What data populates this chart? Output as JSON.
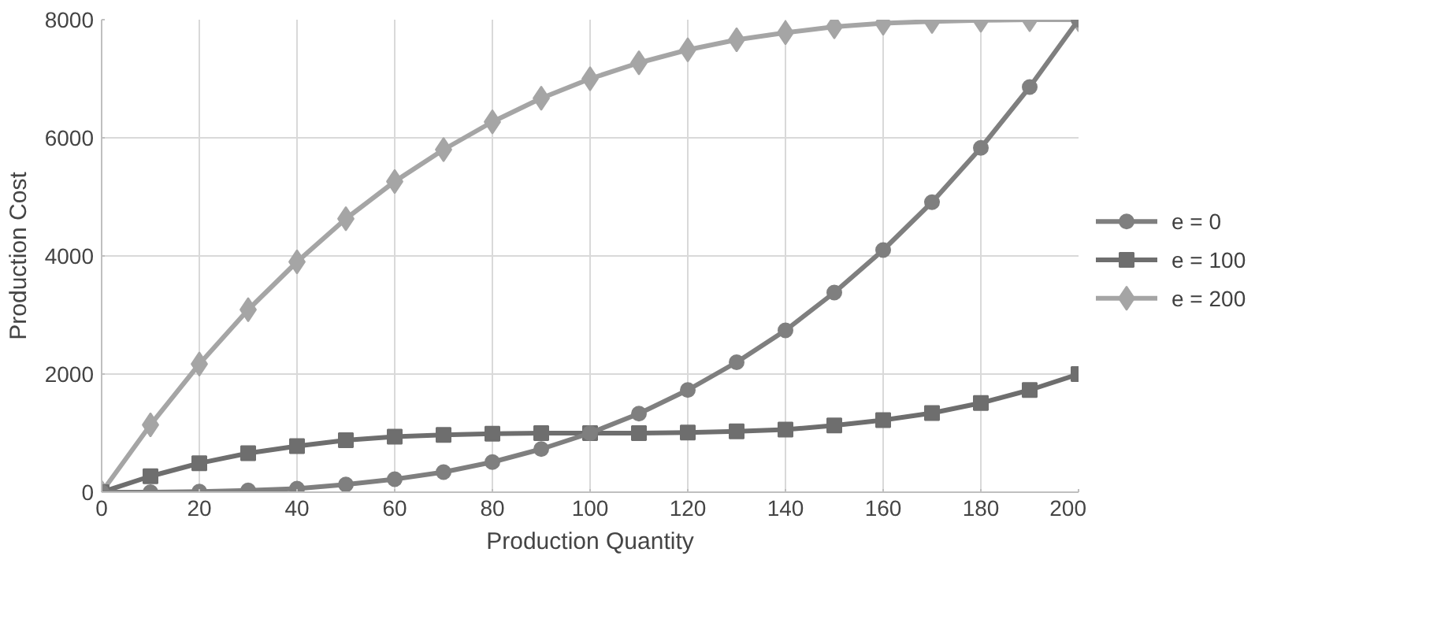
{
  "chart_data": {
    "type": "line",
    "xlabel": "Production Quantity",
    "ylabel": "Production Cost",
    "x": [
      0,
      10,
      20,
      30,
      40,
      50,
      60,
      70,
      80,
      90,
      100,
      110,
      120,
      130,
      140,
      150,
      160,
      170,
      180,
      190,
      200
    ],
    "series": [
      {
        "name": "e = 0",
        "color": "#7f7f7f",
        "marker": "circle",
        "values": [
          0,
          0,
          10,
          30,
          60,
          130,
          220,
          340,
          510,
          730,
          1000,
          1330,
          1730,
          2200,
          2740,
          3380,
          4100,
          4910,
          5830,
          6860,
          8000
        ]
      },
      {
        "name": "e = 100",
        "color": "#6e6e6e",
        "marker": "square",
        "values": [
          0,
          270,
          490,
          660,
          780,
          880,
          940,
          970,
          990,
          1000,
          1000,
          1000,
          1010,
          1030,
          1060,
          1130,
          1220,
          1340,
          1510,
          1730,
          2000
        ]
      },
      {
        "name": "e = 200",
        "color": "#a5a5a5",
        "marker": "diamond",
        "values": [
          0,
          1140,
          2170,
          3090,
          3900,
          4630,
          5260,
          5800,
          6270,
          6670,
          7000,
          7270,
          7490,
          7660,
          7780,
          7880,
          7940,
          7970,
          7990,
          8000,
          8000
        ]
      }
    ],
    "xlim": [
      0,
      200
    ],
    "xticks": [
      0,
      20,
      40,
      60,
      80,
      100,
      120,
      140,
      160,
      180,
      200
    ],
    "ylim": [
      0,
      8000
    ],
    "yticks": [
      0,
      2000,
      4000,
      6000,
      8000
    ],
    "grid": true,
    "legend": "right",
    "line_style": "solid"
  }
}
